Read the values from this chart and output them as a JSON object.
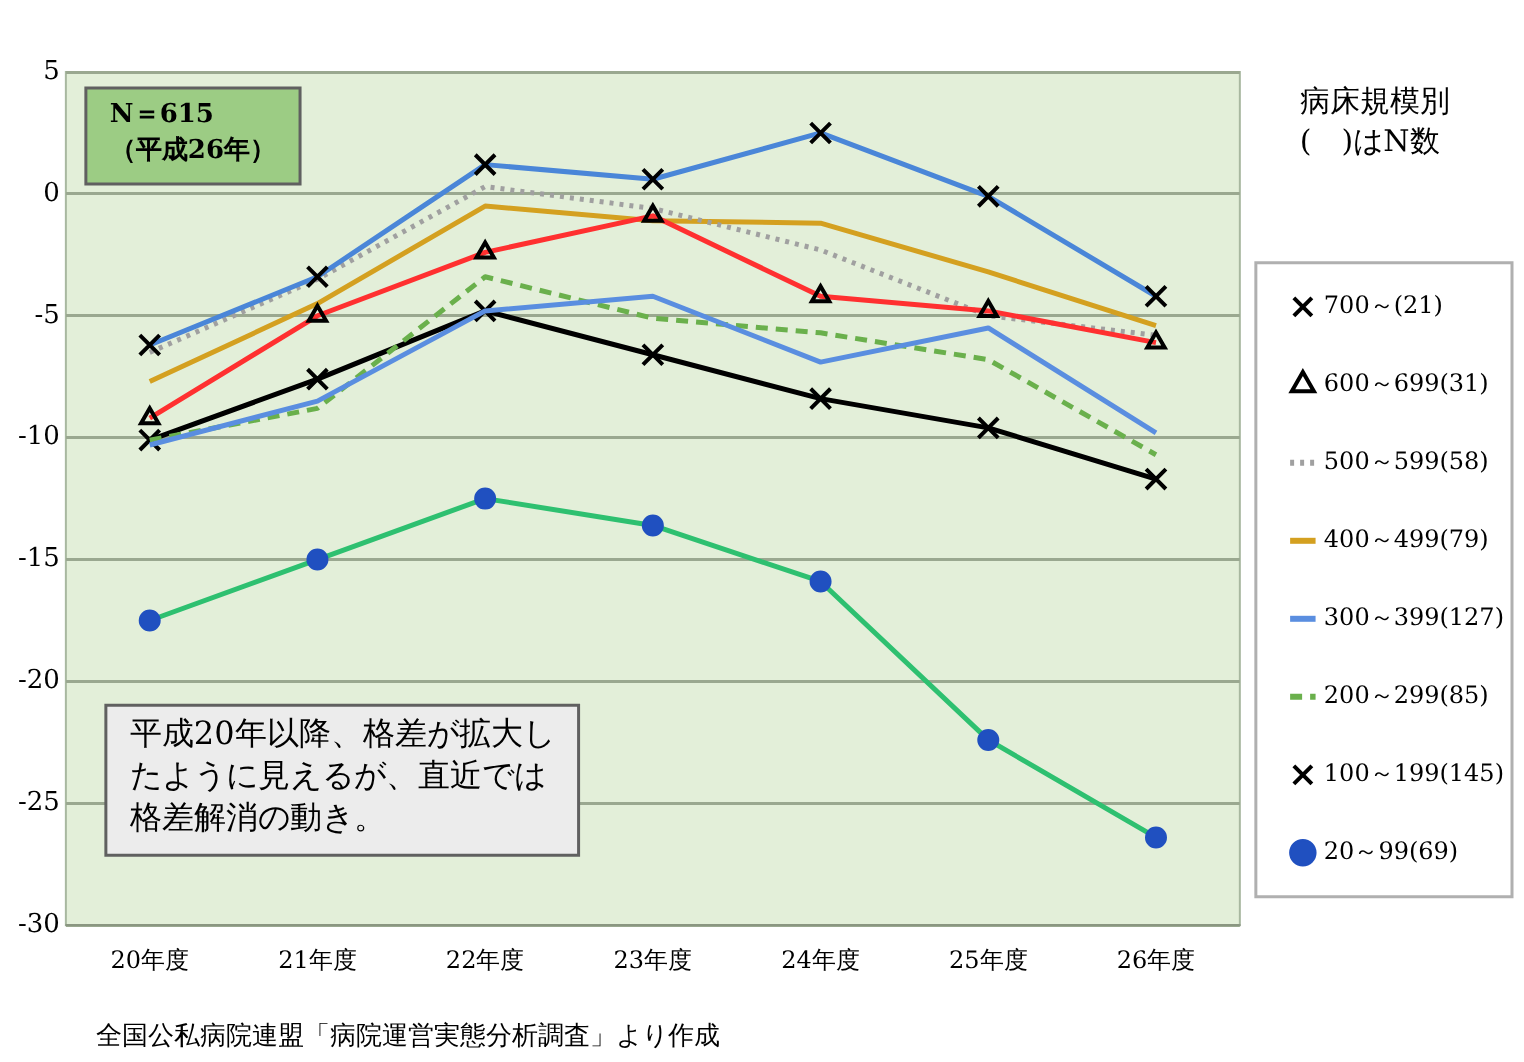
{
  "chart_data": {
    "type": "line",
    "legend_title": "病床規模別\n(　)はN数",
    "categories": [
      "20年度",
      "21年度",
      "22年度",
      "23年度",
      "24年度",
      "25年度",
      "26年度"
    ],
    "series": [
      {
        "name": "700～(21)",
        "color": "#4a86d8",
        "marker": "cross",
        "line_style": "solid",
        "values": [
          -6.2,
          -3.4,
          1.2,
          0.6,
          2.5,
          -0.1,
          -4.2
        ]
      },
      {
        "name": "600～699(31)",
        "color": "#ff3030",
        "marker": "triangle",
        "line_style": "solid",
        "values": [
          -9.2,
          -5.0,
          -2.4,
          -0.9,
          -4.2,
          -4.8,
          -6.1
        ]
      },
      {
        "name": "500～599(58)",
        "color": "#a0a0a0",
        "marker": "none",
        "line_style": "dotted",
        "values": [
          -6.5,
          -3.5,
          0.3,
          -0.6,
          -2.3,
          -5.0,
          -5.8
        ]
      },
      {
        "name": "400～499(79)",
        "color": "#d4a020",
        "marker": "none",
        "line_style": "solid",
        "values": [
          -7.7,
          -4.5,
          -0.5,
          -1.1,
          -1.2,
          -3.2,
          -5.4
        ]
      },
      {
        "name": "300～399(127)",
        "color": "#5a8ee0",
        "marker": "none",
        "line_style": "solid",
        "values": [
          -10.3,
          -8.5,
          -4.8,
          -4.2,
          -6.9,
          -5.5,
          -9.8
        ]
      },
      {
        "name": "200～299(85)",
        "color": "#6ab04c",
        "marker": "none",
        "line_style": "dashed",
        "values": [
          -10.1,
          -8.8,
          -3.4,
          -5.1,
          -5.7,
          -6.8,
          -10.7
        ]
      },
      {
        "name": "100～199(145)",
        "color": "#000000",
        "marker": "cross",
        "line_style": "solid",
        "values": [
          -10.1,
          -7.6,
          -4.8,
          -6.6,
          -8.4,
          -9.6,
          -11.7
        ]
      },
      {
        "name": "20～99(69)",
        "color": "#2ec070",
        "marker": "circle",
        "line_style": "solid",
        "values": [
          -17.5,
          -15.0,
          -12.5,
          -13.6,
          -15.9,
          -22.4,
          -26.4
        ]
      }
    ],
    "ylim": [
      -30,
      5
    ],
    "yticks": [
      5,
      0,
      -5,
      -10,
      -15,
      -20,
      -25,
      -30
    ],
    "grid": "y",
    "legend": "right",
    "annotations": [
      "N＝615\n（平成26年）",
      "平成20年以降、格差が拡大したように見えるが、直近では格差解消の動き。",
      "全国公私病院連盟「病院運営実態分析調査」より作成"
    ]
  }
}
